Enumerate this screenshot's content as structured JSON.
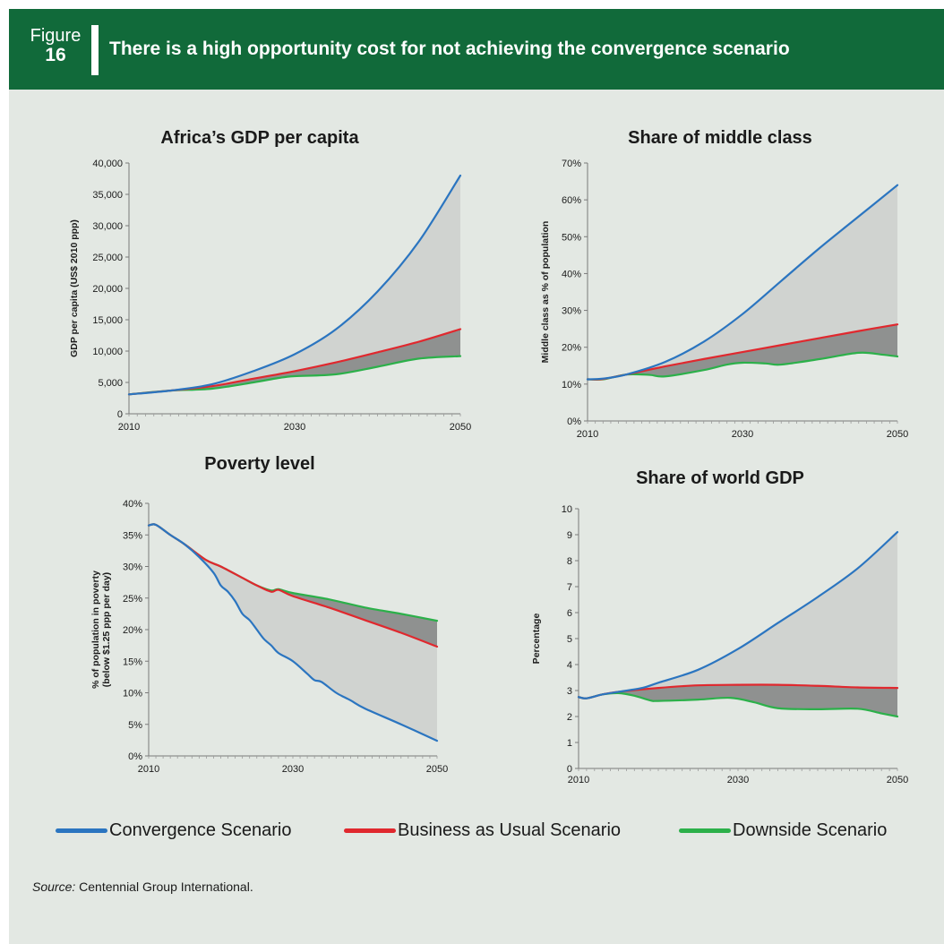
{
  "header": {
    "figure_word": "Figure",
    "figure_number": "16",
    "title": "There is a high opportunity cost for not achieving the convergence scenario"
  },
  "colors": {
    "header_bg": "#116a3a",
    "panel_bg": "#e3e8e3",
    "convergence": "#2b75c0",
    "business_as_usual": "#e0282e",
    "downside": "#2cb04a",
    "light_fill": "#d0d3d0",
    "dark_fill": "#8f9190"
  },
  "legend": [
    {
      "name": "Convergence Scenario",
      "color": "#2b75c0"
    },
    {
      "name": "Business as Usual Scenario",
      "color": "#e0282e"
    },
    {
      "name": "Downside Scenario",
      "color": "#2cb04a"
    }
  ],
  "source": {
    "label": "Source:",
    "text": "Centennial Group International."
  },
  "chart_data": [
    {
      "type": "area",
      "title": "Africa’s GDP per capita",
      "ylabel": "GDP per capita (US$ 2010 ppp)",
      "xlabel": "",
      "xlim": [
        2010,
        2050
      ],
      "ylim": [
        0,
        40000
      ],
      "xticks": [
        "2010",
        "2030",
        "2050"
      ],
      "yticks": [
        "0",
        "5,000",
        "10,000",
        "15,000",
        "20,000",
        "25,000",
        "30,000",
        "35,000",
        "40,000"
      ],
      "ytick_values": [
        0,
        5000,
        10000,
        15000,
        20000,
        25000,
        30000,
        35000,
        40000
      ],
      "grid": false,
      "series": [
        {
          "name": "Convergence Scenario",
          "x": [
            2010,
            2015,
            2020,
            2025,
            2030,
            2035,
            2040,
            2045,
            2050
          ],
          "values": [
            3100,
            3700,
            4700,
            6800,
            9500,
            13500,
            19500,
            27500,
            38000
          ]
        },
        {
          "name": "Business as Usual Scenario",
          "x": [
            2010,
            2015,
            2020,
            2025,
            2030,
            2035,
            2040,
            2045,
            2050
          ],
          "values": [
            3100,
            3700,
            4400,
            5600,
            6800,
            8200,
            9800,
            11500,
            13500
          ]
        },
        {
          "name": "Downside Scenario",
          "x": [
            2010,
            2015,
            2020,
            2025,
            2028,
            2030,
            2035,
            2040,
            2045,
            2050
          ],
          "values": [
            3100,
            3700,
            4000,
            5000,
            5700,
            6000,
            6300,
            7500,
            8800,
            9200
          ]
        }
      ]
    },
    {
      "type": "area",
      "title": "Share of middle class",
      "ylabel": "Middle class as % of population",
      "xlabel": "",
      "xlim": [
        2010,
        2050
      ],
      "ylim": [
        0,
        70
      ],
      "xticks": [
        "2010",
        "2030",
        "2050"
      ],
      "yticks": [
        "0%",
        "10%",
        "20%",
        "30%",
        "40%",
        "50%",
        "60%",
        "70%"
      ],
      "ytick_values": [
        0,
        10,
        20,
        30,
        40,
        50,
        60,
        70
      ],
      "grid": false,
      "series": [
        {
          "name": "Convergence Scenario",
          "x": [
            2010,
            2012,
            2015,
            2020,
            2025,
            2030,
            2035,
            2040,
            2045,
            2050
          ],
          "values": [
            11.3,
            11.5,
            12.6,
            16,
            21.5,
            29,
            38,
            47,
            55.5,
            64
          ]
        },
        {
          "name": "Business as Usual Scenario",
          "x": [
            2010,
            2012,
            2015,
            2020,
            2025,
            2030,
            2035,
            2040,
            2045,
            2050
          ],
          "values": [
            11.3,
            11.4,
            12.6,
            14.8,
            16.8,
            18.7,
            20.6,
            22.5,
            24.4,
            26.2
          ]
        },
        {
          "name": "Downside Scenario",
          "x": [
            2010,
            2012,
            2015,
            2018,
            2020,
            2025,
            2028,
            2030,
            2033,
            2035,
            2040,
            2045,
            2048,
            2050
          ],
          "values": [
            11.3,
            11.3,
            12.6,
            12.5,
            12.1,
            13.8,
            15.3,
            15.8,
            15.6,
            15.3,
            16.8,
            18.5,
            18,
            17.5
          ]
        }
      ]
    },
    {
      "type": "area",
      "title": "Poverty level",
      "ylabel": "% of population in poverty (below $1.25 ppp per day)",
      "ylabel_lines": [
        "% of population in poverty",
        "(below $1.25 ppp per day)"
      ],
      "xlabel": "",
      "xlim": [
        2010,
        2050
      ],
      "ylim": [
        0,
        40
      ],
      "xticks": [
        "2010",
        "2030",
        "2050"
      ],
      "yticks": [
        "0%",
        "5%",
        "10%",
        "15%",
        "20%",
        "25%",
        "30%",
        "35%",
        "40%"
      ],
      "ytick_values": [
        0,
        5,
        10,
        15,
        20,
        25,
        30,
        35,
        40
      ],
      "grid": false,
      "series": [
        {
          "name": "Convergence Scenario",
          "x": [
            2010,
            2011,
            2013,
            2015,
            2017,
            2019,
            2020,
            2021,
            2022,
            2023,
            2024,
            2025,
            2026,
            2027,
            2028,
            2030,
            2032,
            2033,
            2034,
            2036,
            2038,
            2040,
            2045,
            2050
          ],
          "values": [
            36.5,
            36.6,
            35,
            33.5,
            31.5,
            29,
            27,
            26,
            24.5,
            22.5,
            21.5,
            20,
            18.5,
            17.5,
            16.3,
            15,
            13,
            12,
            11.7,
            10,
            8.8,
            7.5,
            5,
            2.4
          ]
        },
        {
          "name": "Business as Usual Scenario",
          "x": [
            2010,
            2011,
            2013,
            2015,
            2018,
            2020,
            2023,
            2025,
            2027,
            2028,
            2030,
            2035,
            2040,
            2045,
            2050
          ],
          "values": [
            36.5,
            36.6,
            35,
            33.5,
            31,
            30,
            28.2,
            27,
            26,
            26.3,
            25.3,
            23.5,
            21.5,
            19.5,
            17.3
          ]
        },
        {
          "name": "Downside Scenario",
          "x": [
            2010,
            2011,
            2013,
            2015,
            2018,
            2020,
            2023,
            2025,
            2027,
            2028,
            2030,
            2035,
            2040,
            2045,
            2050
          ],
          "values": [
            36.5,
            36.6,
            35,
            33.5,
            31,
            30,
            28.2,
            27,
            26.2,
            26.4,
            25.8,
            24.8,
            23.5,
            22.5,
            21.4
          ]
        }
      ]
    },
    {
      "type": "area",
      "title": "Share of world GDP",
      "ylabel": "Percentage",
      "xlabel": "",
      "xlim": [
        2010,
        2050
      ],
      "ylim": [
        0,
        10
      ],
      "xticks": [
        "2010",
        "2030",
        "2050"
      ],
      "yticks": [
        "0",
        "1",
        "2",
        "3",
        "4",
        "5",
        "6",
        "7",
        "8",
        "9",
        "10"
      ],
      "ytick_values": [
        0,
        1,
        2,
        3,
        4,
        5,
        6,
        7,
        8,
        9,
        10
      ],
      "grid": false,
      "series": [
        {
          "name": "Convergence Scenario",
          "x": [
            2010,
            2011,
            2013,
            2015,
            2018,
            2020,
            2025,
            2030,
            2035,
            2040,
            2045,
            2050
          ],
          "values": [
            2.75,
            2.7,
            2.85,
            2.95,
            3.1,
            3.3,
            3.8,
            4.6,
            5.6,
            6.6,
            7.7,
            9.1
          ]
        },
        {
          "name": "Business as Usual Scenario",
          "x": [
            2010,
            2011,
            2013,
            2015,
            2020,
            2025,
            2030,
            2035,
            2040,
            2045,
            2050
          ],
          "values": [
            2.75,
            2.7,
            2.85,
            2.95,
            3.1,
            3.2,
            3.22,
            3.22,
            3.18,
            3.12,
            3.1
          ]
        },
        {
          "name": "Downside Scenario",
          "x": [
            2010,
            2011,
            2013,
            2015,
            2017,
            2019,
            2020,
            2025,
            2029,
            2032,
            2035,
            2040,
            2045,
            2048,
            2050
          ],
          "values": [
            2.75,
            2.7,
            2.85,
            2.9,
            2.8,
            2.62,
            2.6,
            2.65,
            2.72,
            2.55,
            2.32,
            2.28,
            2.3,
            2.12,
            2.0
          ]
        }
      ]
    }
  ]
}
